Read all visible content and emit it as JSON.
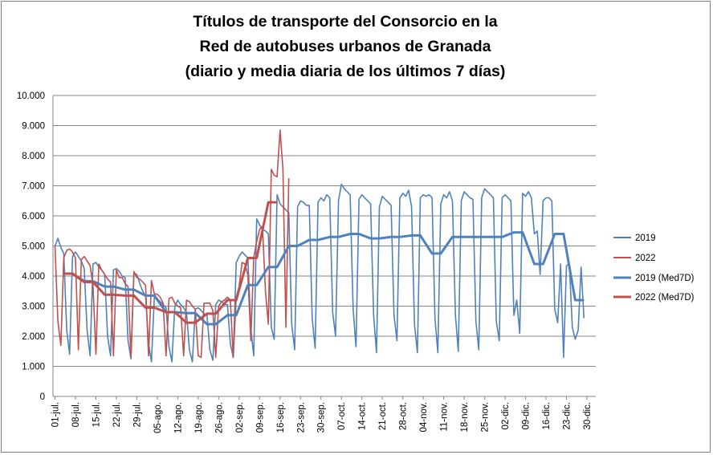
{
  "chart_data": {
    "type": "line",
    "title_lines": [
      "Títulos de transporte del Consorcio en la",
      "Red de autobuses urbanos de Granada",
      "(diario y media diaria de los últimos 7 días)"
    ],
    "ylim": [
      0,
      10000
    ],
    "y_ticks": [
      {
        "value": 0,
        "label": "0"
      },
      {
        "value": 1000,
        "label": "1.000"
      },
      {
        "value": 2000,
        "label": "2.000"
      },
      {
        "value": 3000,
        "label": "3.000"
      },
      {
        "value": 4000,
        "label": "4.000"
      },
      {
        "value": 5000,
        "label": "5.000"
      },
      {
        "value": 6000,
        "label": "6.000"
      },
      {
        "value": 7000,
        "label": "7.000"
      },
      {
        "value": 8000,
        "label": "8.000"
      },
      {
        "value": 9000,
        "label": "9.000"
      },
      {
        "value": 10000,
        "label": "10.000"
      }
    ],
    "x_ticks": [
      "01-jul.",
      "08-jul.",
      "15-jul.",
      "22-jul.",
      "29-jul.",
      "05-ago.",
      "12-ago.",
      "19-ago.",
      "26-ago.",
      "02-sep.",
      "09-sep.",
      "16-sep.",
      "23-sep.",
      "30-sep.",
      "07-oct.",
      "14-oct.",
      "21-oct.",
      "28-oct.",
      "04-nov.",
      "11-nov.",
      "18-nov.",
      "25-nov.",
      "02-dic.",
      "09-dic.",
      "16-dic.",
      "23-dic.",
      "30-dic."
    ],
    "grid": true,
    "legend_position": "right",
    "series": [
      {
        "name": "2019",
        "color": "#4f81bd",
        "width": 1.6,
        "weekly": [
          [
            5000,
            5250,
            4950,
            4750,
            2200,
            1400,
            4650
          ],
          [
            4800,
            4650,
            4500,
            4250,
            2200,
            1350,
            4400
          ],
          [
            4450,
            4300,
            4200,
            4050,
            2000,
            1350,
            4200
          ],
          [
            4250,
            4150,
            4000,
            3950,
            1850,
            1250,
            4100
          ],
          [
            4050,
            3750,
            3500,
            3350,
            1750,
            1150,
            3350
          ],
          [
            3250,
            3150,
            3050,
            2950,
            1650,
            1150,
            3000
          ],
          [
            3200,
            3050,
            2950,
            2800,
            1550,
            1150,
            2900
          ],
          [
            2950,
            2850,
            2750,
            2700,
            1550,
            1200,
            3050
          ],
          [
            3200,
            3150,
            3050,
            3050,
            1750,
            1300,
            4450
          ],
          [
            4650,
            4800,
            4700,
            4600,
            2250,
            1350,
            5900
          ],
          [
            5700,
            5550,
            5500,
            5400,
            2300,
            1900,
            6700
          ],
          [
            6400,
            6300,
            6200,
            6100,
            2400,
            1550,
            6300
          ],
          [
            6500,
            6450,
            6350,
            6350,
            2600,
            1600,
            6450
          ],
          [
            6600,
            6500,
            6700,
            6600,
            2800,
            2000,
            6500
          ],
          [
            7050,
            6900,
            6800,
            6700,
            2900,
            1650,
            6550
          ],
          [
            6700,
            6600,
            6500,
            6400,
            2700,
            1450,
            6300
          ],
          [
            6650,
            6550,
            6450,
            6350,
            2700,
            1850,
            6600
          ],
          [
            6750,
            6650,
            6850,
            6300,
            2400,
            1450,
            6600
          ],
          [
            6700,
            6650,
            6700,
            6600,
            2600,
            1450,
            6400
          ],
          [
            6700,
            6600,
            6800,
            6500,
            2700,
            1500,
            6500
          ],
          [
            6800,
            6700,
            6600,
            6550,
            2500,
            1550,
            6600
          ],
          [
            6900,
            6800,
            6700,
            6600,
            2500,
            1850,
            6600
          ],
          [
            6700,
            6600,
            6500,
            2700,
            3200,
            2100,
            6750
          ],
          [
            6650,
            6800,
            6600,
            5400,
            5500,
            4050,
            6500
          ],
          [
            6600,
            6600,
            6500,
            2900,
            2450,
            4400,
            1300
          ],
          [
            4350,
            4400,
            2300,
            1900,
            2200,
            4300,
            2600
          ]
        ]
      },
      {
        "name": "2022",
        "color": "#c0504d",
        "width": 1.6,
        "values": [
          5000,
          2500,
          1700,
          4600,
          4850,
          4900,
          4800,
          4600,
          1550,
          4550,
          4650,
          4500,
          4350,
          3700,
          1400,
          4400,
          4200,
          4050,
          3900,
          3800,
          1350,
          4200,
          3950,
          3950,
          3750,
          3650,
          1300,
          4150,
          3950,
          3900,
          3800,
          3700,
          1350,
          3850,
          3400,
          3400,
          3300,
          3100,
          1350,
          3250,
          3300,
          3100,
          3000,
          2950,
          1350,
          3200,
          3150,
          3000,
          2900,
          1350,
          1300,
          3100,
          3100,
          3100,
          2850,
          1300,
          3000,
          3150,
          3200,
          3300,
          3200,
          1300,
          3300,
          3650,
          4450,
          4400,
          4050,
          1850,
          4600,
          5150,
          5550,
          5650,
          3500,
          2400,
          7550,
          7350,
          7300,
          8850,
          7550,
          2300,
          7250
        ]
      },
      {
        "name": "2019 (Med7D)",
        "color": "#4f81bd",
        "width": 3,
        "weekly_avg": [
          4080,
          3830,
          3650,
          3550,
          3350,
          2800,
          2770,
          2400,
          2700,
          3700,
          4300,
          5000,
          5200,
          5300,
          5400,
          5250,
          5300,
          5350,
          4750,
          5300,
          5300,
          5300,
          5450,
          4400,
          5400,
          3200
        ]
      },
      {
        "name": "2022 (Med7D)",
        "color": "#c0504d",
        "width": 3,
        "weekly_avg": [
          4080,
          3800,
          3380,
          3350,
          2950,
          2800,
          2450,
          2750,
          3200,
          4600,
          6450
        ]
      }
    ]
  }
}
